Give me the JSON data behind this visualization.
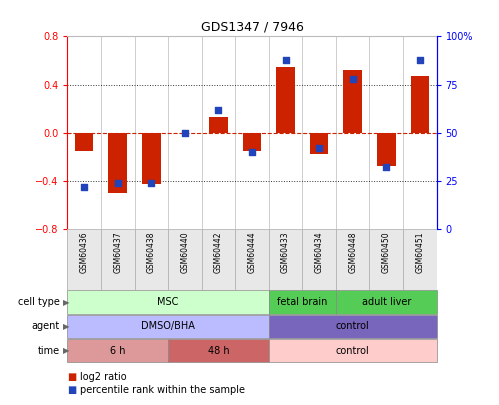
{
  "title": "GDS1347 / 7946",
  "samples": [
    "GSM60436",
    "GSM60437",
    "GSM60438",
    "GSM60440",
    "GSM60442",
    "GSM60444",
    "GSM60433",
    "GSM60434",
    "GSM60448",
    "GSM60450",
    "GSM60451"
  ],
  "log2_ratio": [
    -0.15,
    -0.5,
    -0.43,
    0.0,
    0.13,
    -0.15,
    0.55,
    -0.18,
    0.52,
    -0.28,
    0.47
  ],
  "percentile_rank": [
    22,
    24,
    24,
    50,
    62,
    40,
    88,
    42,
    78,
    32,
    88
  ],
  "ylim_left": [
    -0.8,
    0.8
  ],
  "ylim_right": [
    0,
    100
  ],
  "yticks_left": [
    -0.8,
    -0.4,
    0.0,
    0.4,
    0.8
  ],
  "yticks_right": [
    0,
    25,
    50,
    75,
    100
  ],
  "bar_color": "#cc2200",
  "dot_color": "#2244bb",
  "hline_color": "#cc2200",
  "grid_color": "#333333",
  "cell_ranges": [
    {
      "label": "MSC",
      "start": 0,
      "end": 5,
      "color": "#ccffcc"
    },
    {
      "label": "fetal brain",
      "start": 6,
      "end": 7,
      "color": "#55cc55"
    },
    {
      "label": "adult liver",
      "start": 8,
      "end": 10,
      "color": "#55cc55"
    }
  ],
  "agent_ranges": [
    {
      "label": "DMSO/BHA",
      "start": 0,
      "end": 5,
      "color": "#bbbbff"
    },
    {
      "label": "control",
      "start": 6,
      "end": 10,
      "color": "#7766bb"
    }
  ],
  "time_ranges": [
    {
      "label": "6 h",
      "start": 0,
      "end": 2,
      "color": "#dd9999"
    },
    {
      "label": "48 h",
      "start": 3,
      "end": 5,
      "color": "#cc6666"
    },
    {
      "label": "control",
      "start": 6,
      "end": 10,
      "color": "#ffcccc"
    }
  ],
  "legend_bar_color": "#cc2200",
  "legend_dot_color": "#2244bb",
  "legend_text1": "log2 ratio",
  "legend_text2": "percentile rank within the sample",
  "bg_color": "#ffffff",
  "row_labels": [
    "cell type",
    "agent",
    "time"
  ],
  "border_color": "#888888"
}
